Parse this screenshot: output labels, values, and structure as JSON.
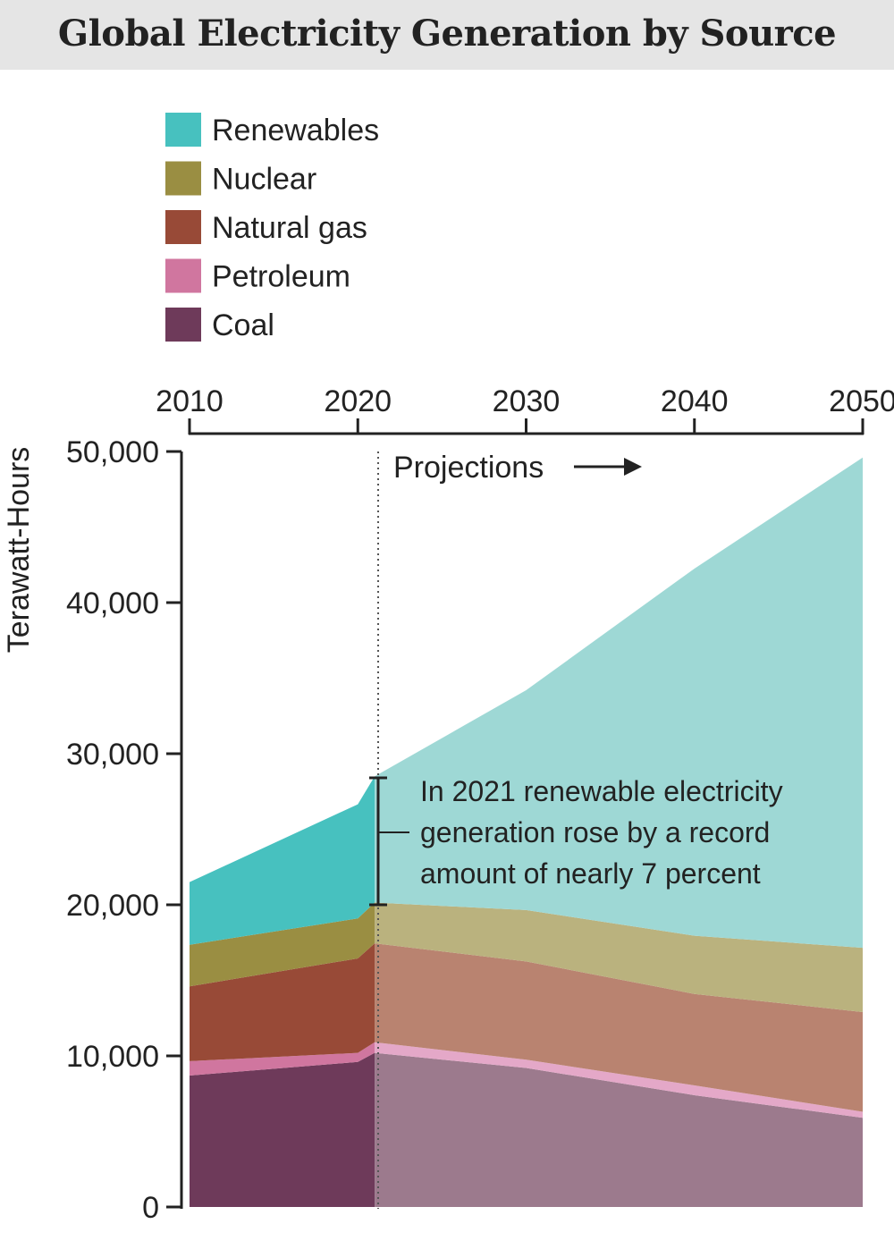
{
  "title": "Global Electricity Generation by Source",
  "chart_data": {
    "type": "area",
    "stacked": true,
    "title": "Global Electricity Generation by Source",
    "xlabel": "",
    "ylabel": "Terawatt-Hours",
    "x": [
      2010,
      2020,
      2021,
      2030,
      2040,
      2050
    ],
    "xlim": [
      2010,
      2050
    ],
    "ylim": [
      0,
      50000
    ],
    "x_ticks": [
      "2010",
      "2020",
      "2030",
      "2040",
      "2050"
    ],
    "y_ticks": [
      "0",
      "10,000",
      "20,000",
      "30,000",
      "40,000",
      "50,000"
    ],
    "x_axis_position": "top",
    "grid": false,
    "legend_position": "top-left",
    "projection_start": 2021,
    "projection_label": "Projections",
    "series": [
      {
        "name": "Coal",
        "color": "#6e3a5a",
        "projection_color": "#9c7a8d",
        "values": [
          8700,
          9600,
          10200,
          9200,
          7400,
          5900
        ]
      },
      {
        "name": "Petroleum",
        "color": "#d0769f",
        "projection_color": "#e4a8c8",
        "values": [
          950,
          600,
          700,
          550,
          650,
          400
        ]
      },
      {
        "name": "Natural gas",
        "color": "#984a37",
        "projection_color": "#b98370",
        "values": [
          4950,
          6250,
          6550,
          6500,
          6050,
          6600
        ]
      },
      {
        "name": "Nuclear",
        "color": "#9a8e42",
        "projection_color": "#bab27e",
        "values": [
          2750,
          2650,
          2700,
          3400,
          3850,
          4250
        ]
      },
      {
        "name": "Renewables",
        "color": "#47c1bf",
        "projection_color": "#9ed8d5",
        "values": [
          4150,
          7550,
          8350,
          14550,
          24300,
          32450
        ]
      }
    ],
    "legend_order": [
      "Renewables",
      "Nuclear",
      "Natural gas",
      "Petroleum",
      "Coal"
    ],
    "annotation": {
      "lines": [
        "In 2021 renewable electricity",
        "generation rose by a record",
        "amount of nearly 7 percent"
      ]
    }
  }
}
